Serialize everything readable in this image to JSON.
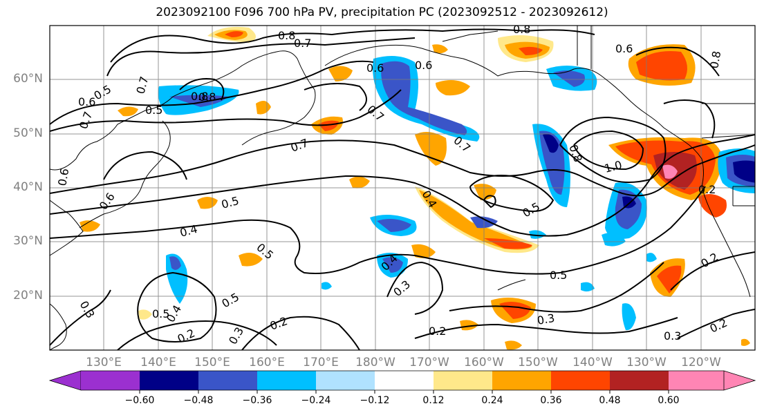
{
  "title": "2023092100 F096 700 hPa PV, precipitation PC (2023092512 - 2023092612)",
  "map": {
    "lat_labels": [
      "60°N",
      "50°N",
      "40°N",
      "30°N",
      "20°N"
    ],
    "lon_labels": [
      "130°E",
      "140°E",
      "150°E",
      "160°E",
      "170°E",
      "180°W",
      "170°W",
      "160°W",
      "150°W",
      "140°W",
      "130°W",
      "120°W"
    ],
    "extent": {
      "lon_min": 120,
      "lon_max": 250,
      "lat_min": 10,
      "lat_max": 70
    },
    "contour_labels": [
      "0.8",
      "0.7",
      "0.8",
      "0.6",
      "0.8",
      "0.7",
      "0.5",
      "0.6",
      "0.7",
      "0.8",
      "0.5",
      "0.6",
      "0.7",
      "0.7",
      "0.4",
      "0.5",
      "0.5",
      "0.4",
      "0.6",
      "0.5",
      "0.5",
      "0.8",
      "1.0",
      "0.4",
      "0.3",
      "0.5",
      "0.3",
      "0.2",
      "0.2",
      "0.3",
      "0.2",
      "0.2",
      "0.5",
      "0.4",
      "0.3",
      "0.2",
      "0.3",
      "0.7",
      "0.6",
      "0.2",
      "0.8",
      "0.6"
    ]
  },
  "colorbar": {
    "ticks": [
      "−0.60",
      "−0.48",
      "−0.36",
      "−0.24",
      "−0.12",
      "0.12",
      "0.24",
      "0.36",
      "0.48",
      "0.60"
    ],
    "colors": [
      "#9b30d0",
      "#000087",
      "#3a55c8",
      "#00bfff",
      "#b0e2ff",
      "#ffffff",
      "#ffe88a",
      "#ffa500",
      "#ff4500",
      "#b22222",
      "#ff85b4",
      "#ff85b4"
    ]
  },
  "colors": {
    "pos_low": "#ffe88a",
    "pos_mid": "#ffa500",
    "pos_high": "#ff4500",
    "pos_max": "#b22222",
    "pos_ext": "#ff85b4",
    "neg_low": "#b0e2ff",
    "neg_mid": "#00bfff",
    "neg_high": "#3a55c8",
    "neg_max": "#000087"
  }
}
